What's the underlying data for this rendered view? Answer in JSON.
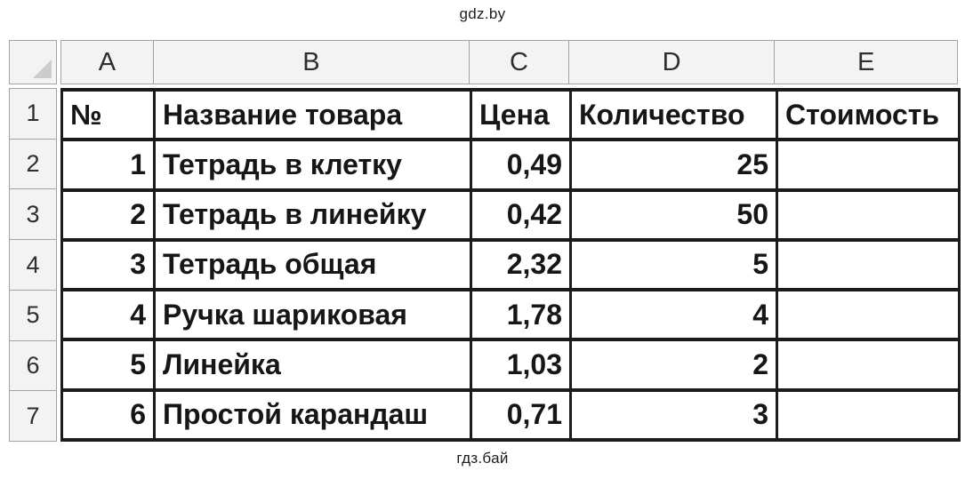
{
  "watermarks": {
    "top": "gdz.by",
    "bottom": "гдз.бай"
  },
  "spreadsheet": {
    "column_headers": [
      "A",
      "B",
      "C",
      "D",
      "E"
    ],
    "row_headers": [
      "1",
      "2",
      "3",
      "4",
      "5",
      "6",
      "7"
    ],
    "header_row": [
      "№",
      "Название товара",
      "Цена",
      "Количество",
      "Стоимость"
    ],
    "rows": [
      [
        "1",
        "Тетрадь в клетку",
        "0,49",
        "25",
        ""
      ],
      [
        "2",
        "Тетрадь в линейку",
        "0,42",
        "50",
        ""
      ],
      [
        "3",
        "Тетрадь общая",
        "2,32",
        "5",
        ""
      ],
      [
        "4",
        "Ручка шариковая",
        "1,78",
        "4",
        ""
      ],
      [
        "5",
        "Линейка",
        "1,03",
        "2",
        ""
      ],
      [
        "6",
        "Простой карандаш",
        "0,71",
        "3",
        ""
      ]
    ],
    "colors": {
      "grid_border": "#1b1b1b",
      "header_bg": "#f3f3f3",
      "header_border": "#a3a3a3",
      "text": "#161616"
    }
  }
}
